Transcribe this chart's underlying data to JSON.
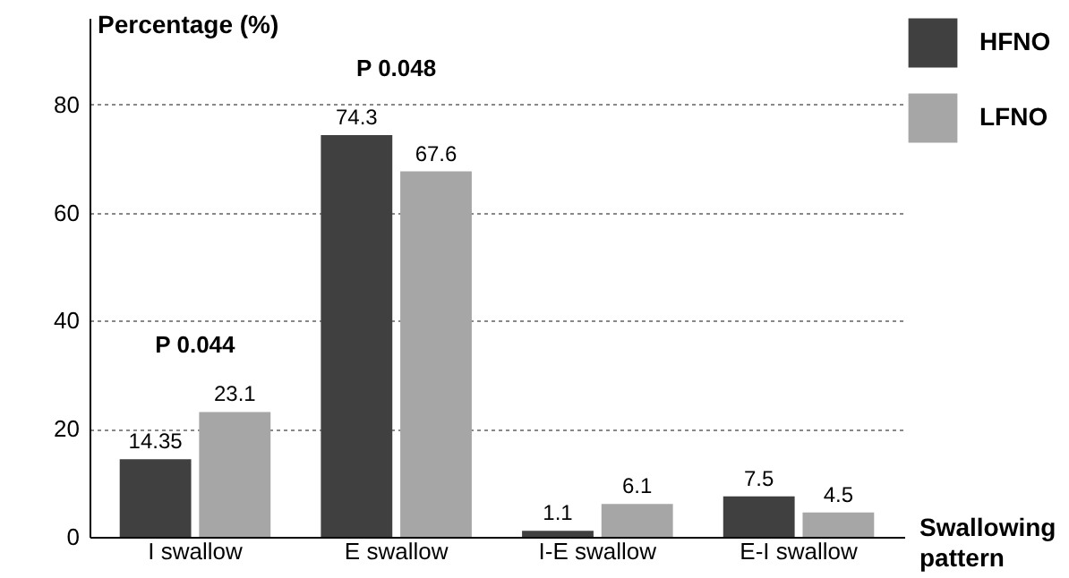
{
  "chart_data": {
    "type": "bar",
    "categories": [
      "I swallow",
      "E swallow",
      "I-E swallow",
      "E-I swallow"
    ],
    "series": [
      {
        "name": "HFNO",
        "color": "#404040",
        "values": [
          14.35,
          74.3,
          1.1,
          7.5
        ]
      },
      {
        "name": "LFNO",
        "color": "#a6a6a6",
        "values": [
          23.1,
          67.6,
          6.1,
          4.5
        ]
      }
    ],
    "ylabel": "Percentage (%)",
    "xlabel": "Swallowing pattern",
    "ylim": [
      0,
      96
    ],
    "yticks": [
      0,
      20,
      40,
      60,
      80
    ],
    "grid": "y",
    "legend": "top right",
    "data_labels": true,
    "annotations": [
      "P 0.044",
      "P 0.048"
    ]
  }
}
